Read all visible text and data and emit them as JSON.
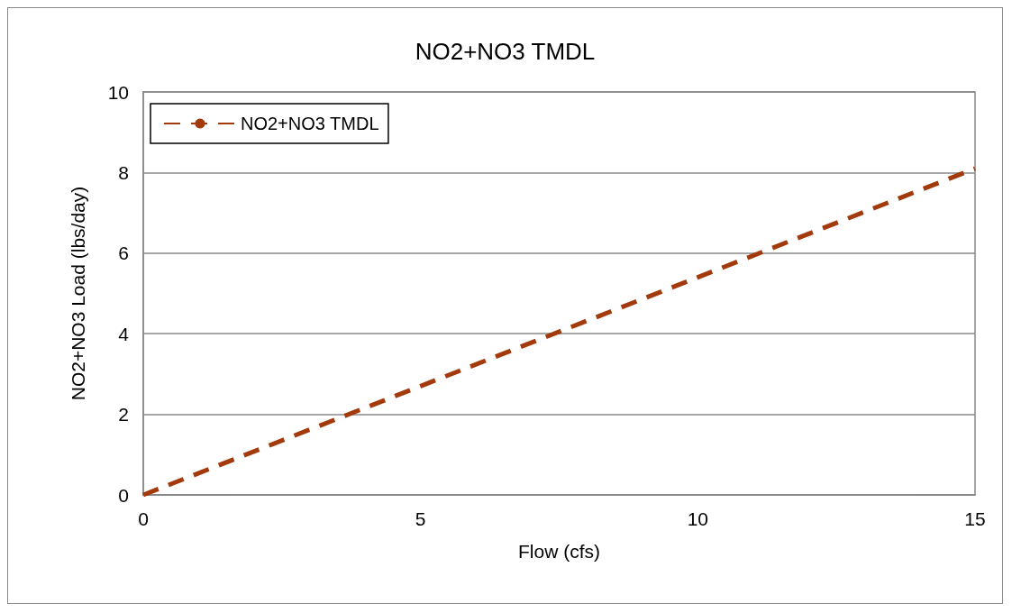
{
  "chart_data": {
    "type": "line",
    "title": "NO2+NO3 TMDL",
    "xlabel": "Flow (cfs)",
    "ylabel": "NO2+NO3 Load (lbs/day)",
    "x": [
      0,
      5,
      10,
      15
    ],
    "series": [
      {
        "name": "NO2+NO3 TMDL",
        "color": "#a33a0c",
        "values": [
          0,
          2.7,
          5.4,
          8.1
        ]
      }
    ],
    "xlim": [
      0,
      15
    ],
    "xticks": [
      0,
      5,
      10,
      15
    ],
    "ylim": [
      0,
      10
    ],
    "yticks": [
      0,
      2,
      4,
      6,
      8,
      10
    ],
    "grid": "y",
    "legend": "top left",
    "marker": "none",
    "line_style": "dashed"
  }
}
